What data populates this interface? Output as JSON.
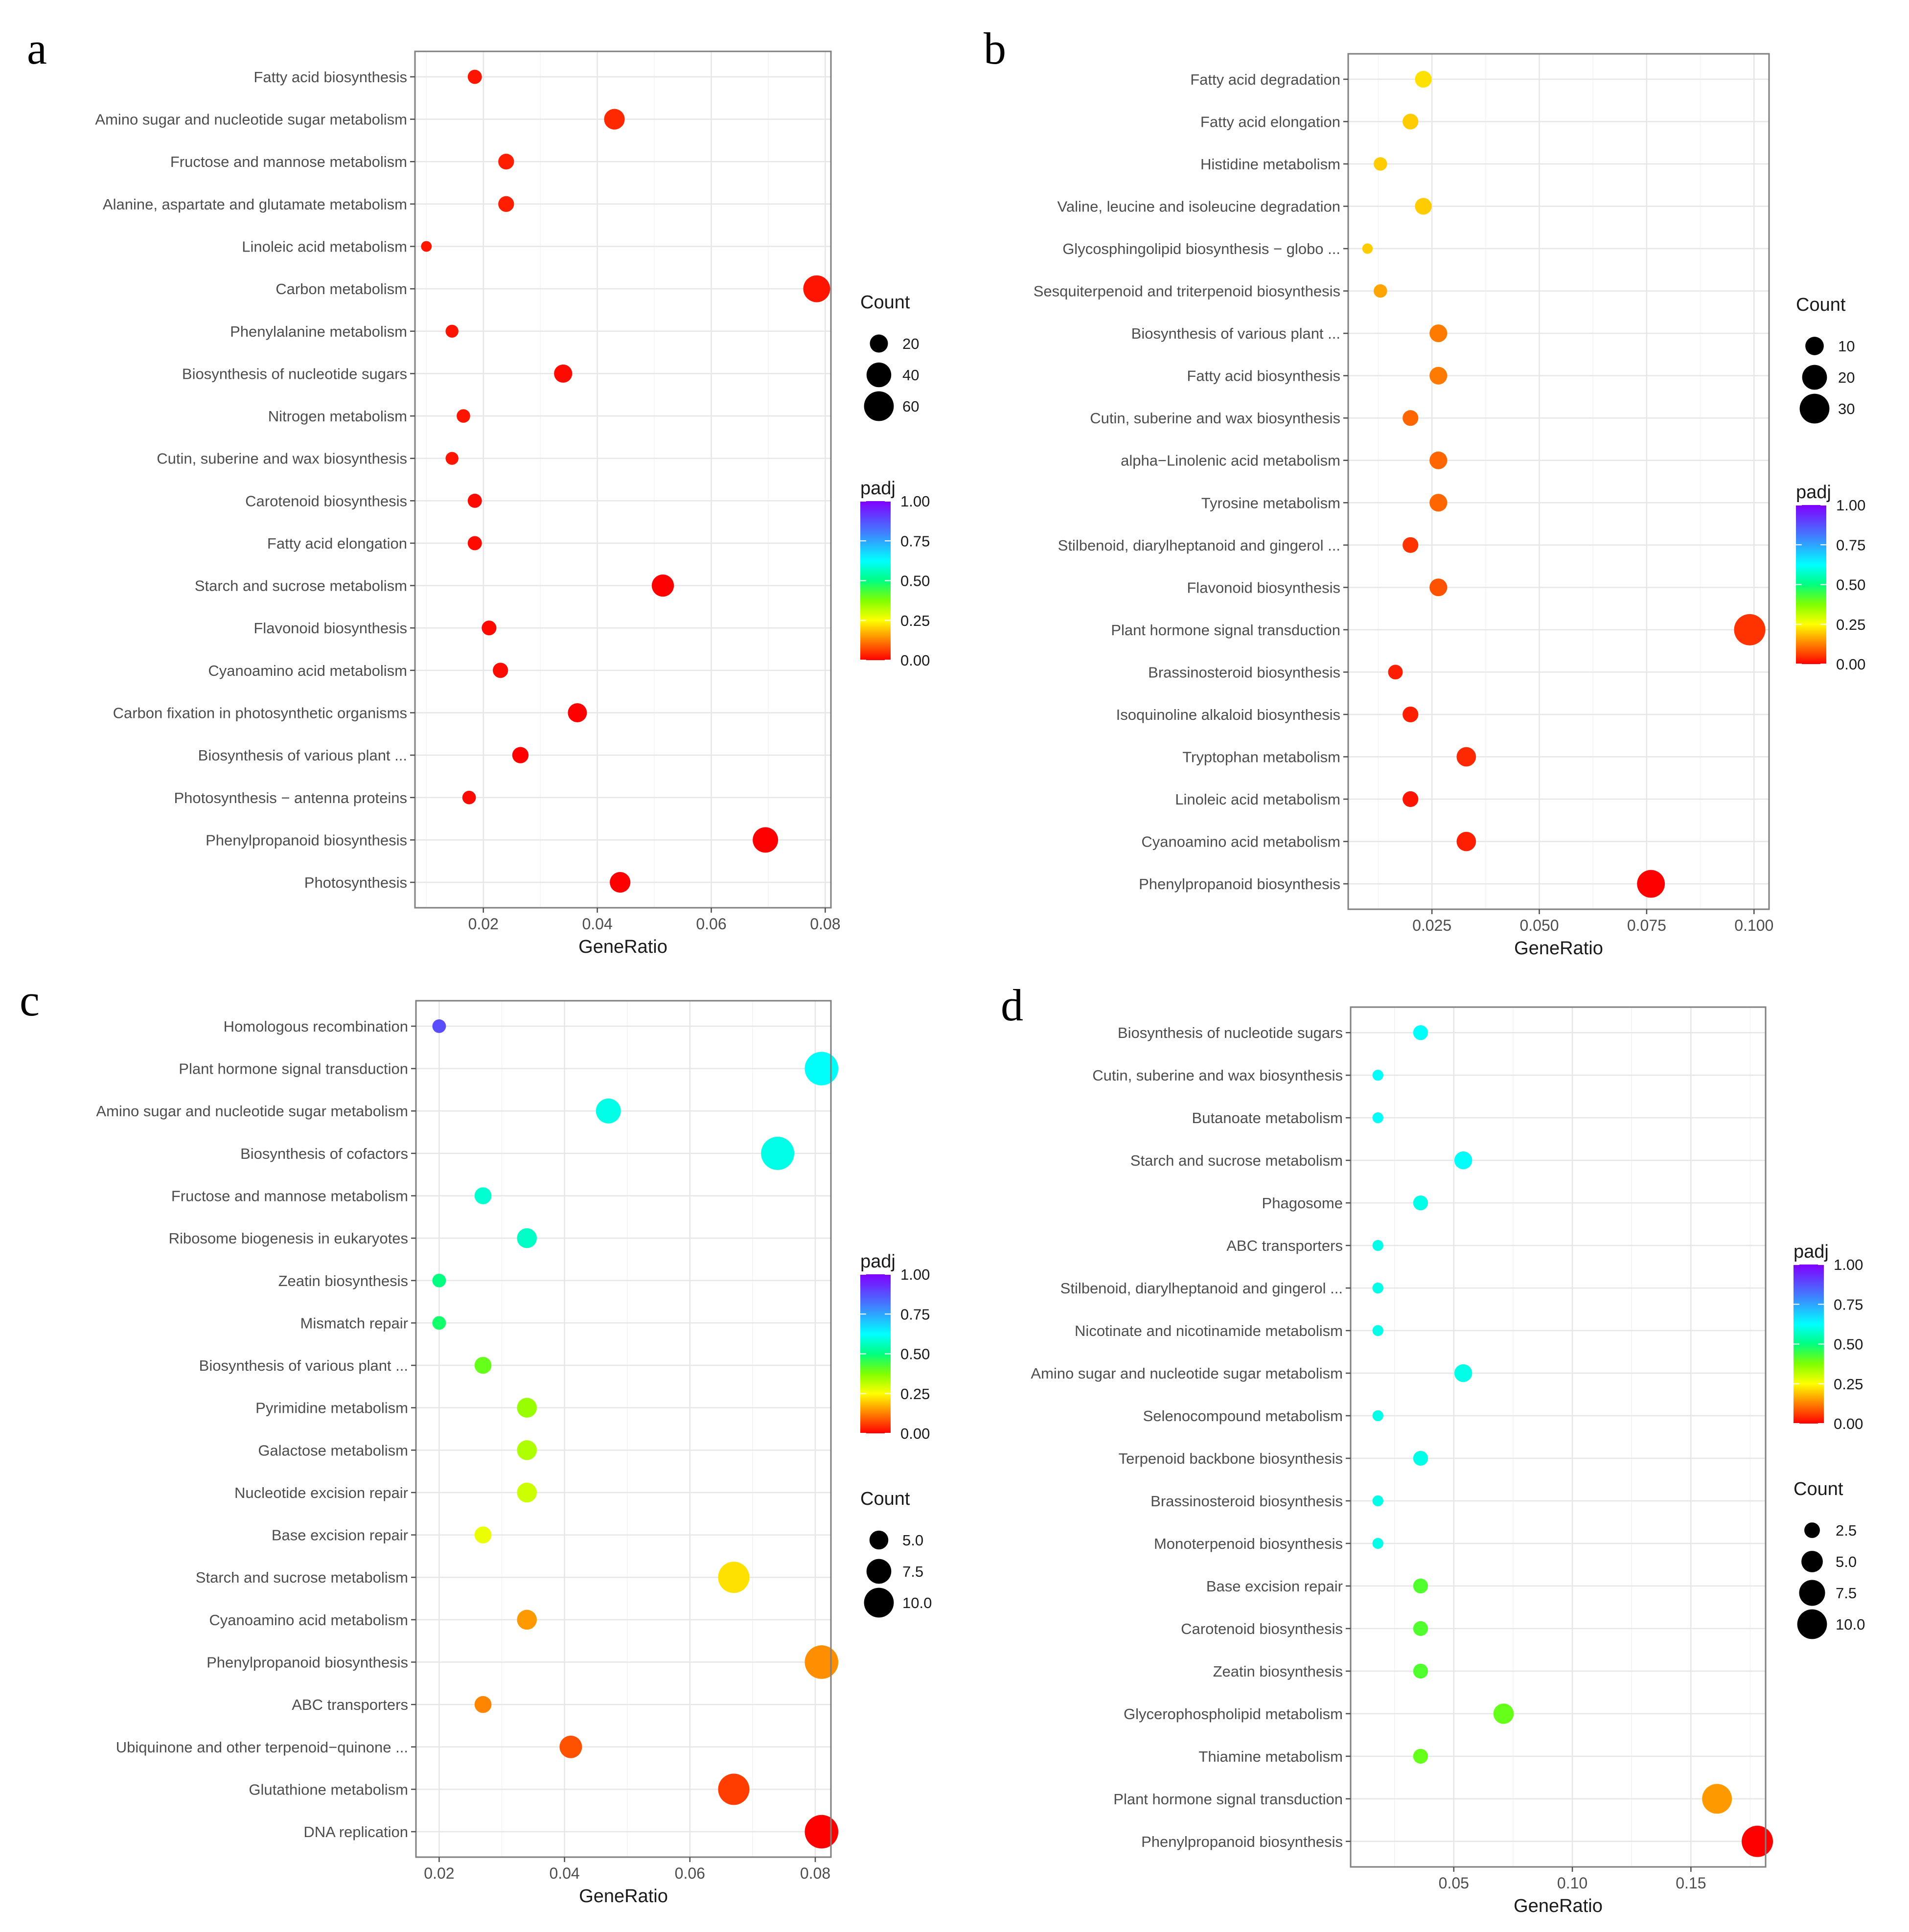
{
  "figure": "GeneRatio dot plots of enriched pathways",
  "chart_data": [
    {
      "panel": "a",
      "type": "scatter",
      "xlabel": "GeneRatio",
      "xlim": [
        0.008,
        0.081
      ],
      "xticks": [
        0.02,
        0.04,
        0.06,
        0.08
      ],
      "xtick_labels": [
        "0.02",
        "0.04",
        "0.06",
        "0.08"
      ],
      "categories": [
        "Fatty acid biosynthesis",
        "Amino sugar and nucleotide sugar metabolism",
        "Fructose and mannose metabolism",
        "Alanine, aspartate and glutamate metabolism",
        "Linoleic acid metabolism",
        "Carbon metabolism",
        "Phenylalanine metabolism",
        "Biosynthesis of nucleotide sugars",
        "Nitrogen metabolism",
        "Cutin, suberine and wax biosynthesis",
        "Carotenoid biosynthesis",
        "Fatty acid elongation",
        "Starch and sucrose metabolism",
        "Flavonoid biosynthesis",
        "Cyanoamino acid metabolism",
        "Carbon fixation in photosynthetic organisms",
        "Biosynthesis of various plant ...",
        "Photosynthesis − antenna proteins",
        "Phenylpropanoid biosynthesis",
        "Photosynthesis"
      ],
      "gene_ratio": [
        0.0185,
        0.043,
        0.024,
        0.024,
        0.01,
        0.0785,
        0.0145,
        0.034,
        0.0165,
        0.0145,
        0.0185,
        0.0185,
        0.0515,
        0.021,
        0.023,
        0.0365,
        0.0265,
        0.0175,
        0.0695,
        0.044
      ],
      "count": [
        10,
        24,
        13,
        13,
        5,
        43,
        8,
        18,
        9,
        8,
        10,
        10,
        28,
        11,
        12,
        20,
        14,
        9,
        38,
        24
      ],
      "padj": [
        0.02,
        0.04,
        0.03,
        0.03,
        0.02,
        0.02,
        0.02,
        0.01,
        0.02,
        0.02,
        0.01,
        0.01,
        0.0,
        0.01,
        0.01,
        0.0,
        0.0,
        0.01,
        0.0,
        0.0
      ],
      "size_legend": {
        "title": "Count",
        "values": [
          20,
          40,
          60
        ],
        "labels": [
          "20",
          "40",
          "60"
        ]
      },
      "color_legend": {
        "title": "padj",
        "ticks": [
          "1.00",
          "0.75",
          "0.50",
          "0.25",
          "0.00"
        ]
      },
      "legend_order": [
        "size",
        "color"
      ]
    },
    {
      "panel": "b",
      "type": "scatter",
      "xlabel": "GeneRatio",
      "xlim": [
        0.0055,
        0.1035
      ],
      "xticks": [
        0.025,
        0.05,
        0.075,
        0.1
      ],
      "xtick_labels": [
        "0.025",
        "0.050",
        "0.075",
        "0.100"
      ],
      "categories": [
        "Fatty acid degradation",
        "Fatty acid elongation",
        "Histidine metabolism",
        "Valine, leucine and isoleucine degradation",
        "Glycosphingolipid biosynthesis − globo ...",
        "Sesquiterpenoid and triterpenoid biosynthesis",
        "Biosynthesis of various plant ...",
        "Fatty acid biosynthesis",
        "Cutin, suberine and wax biosynthesis",
        "alpha−Linolenic acid metabolism",
        "Tyrosine metabolism",
        "Stilbenoid, diarylheptanoid and gingerol ...",
        "Flavonoid biosynthesis",
        "Plant hormone signal transduction",
        "Brassinosteroid biosynthesis",
        "Isoquinoline alkaloid biosynthesis",
        "Tryptophan metabolism",
        "Linoleic acid metabolism",
        "Cyanoamino acid metabolism",
        "Phenylpropanoid biosynthesis"
      ],
      "gene_ratio": [
        0.023,
        0.02,
        0.013,
        0.023,
        0.01,
        0.013,
        0.0265,
        0.0265,
        0.02,
        0.0265,
        0.0265,
        0.02,
        0.0265,
        0.099,
        0.0165,
        0.02,
        0.033,
        0.02,
        0.033,
        0.076
      ],
      "count": [
        7,
        6,
        4,
        7,
        2,
        4,
        8,
        8,
        6,
        8,
        8,
        6,
        8,
        30,
        5,
        6,
        10,
        6,
        10,
        23
      ],
      "padj": [
        0.22,
        0.2,
        0.2,
        0.2,
        0.2,
        0.16,
        0.12,
        0.12,
        0.1,
        0.1,
        0.1,
        0.05,
        0.08,
        0.05,
        0.03,
        0.03,
        0.04,
        0.02,
        0.03,
        0.0
      ],
      "size_legend": {
        "title": "Count",
        "values": [
          10,
          20,
          30
        ],
        "labels": [
          "10",
          "20",
          "30"
        ]
      },
      "color_legend": {
        "title": "padj",
        "ticks": [
          "1.00",
          "0.75",
          "0.50",
          "0.25",
          "0.00"
        ]
      },
      "legend_order": [
        "size",
        "color"
      ]
    },
    {
      "panel": "c",
      "type": "scatter",
      "xlabel": "GeneRatio",
      "xlim": [
        0.0163,
        0.0825
      ],
      "xticks": [
        0.02,
        0.04,
        0.06,
        0.08
      ],
      "xtick_labels": [
        "0.02",
        "0.04",
        "0.06",
        "0.08"
      ],
      "categories": [
        "Homologous recombination",
        "Plant hormone signal transduction",
        "Amino sugar and nucleotide sugar metabolism",
        "Biosynthesis of cofactors",
        "Fructose and mannose metabolism",
        "Ribosome biogenesis in eukaryotes",
        "Zeatin biosynthesis",
        "Mismatch repair",
        "Biosynthesis of various plant ...",
        "Pyrimidine metabolism",
        "Galactose metabolism",
        "Nucleotide excision repair",
        "Base excision repair",
        "Starch and sucrose metabolism",
        "Cyanoamino acid metabolism",
        "Phenylpropanoid biosynthesis",
        "ABC transporters",
        "Ubiquinone and other terpenoid−quinone ...",
        "Glutathione metabolism",
        "DNA replication"
      ],
      "gene_ratio": [
        0.02,
        0.081,
        0.047,
        0.074,
        0.027,
        0.034,
        0.02,
        0.02,
        0.027,
        0.034,
        0.034,
        0.034,
        0.027,
        0.067,
        0.034,
        0.081,
        0.027,
        0.041,
        0.067,
        0.081
      ],
      "count": [
        3,
        12,
        7,
        11,
        4,
        5,
        3,
        3,
        4,
        5,
        5,
        5,
        4,
        10,
        5,
        12,
        4,
        6,
        10,
        12
      ],
      "padj": [
        0.88,
        0.62,
        0.6,
        0.6,
        0.58,
        0.57,
        0.5,
        0.48,
        0.4,
        0.35,
        0.33,
        0.3,
        0.27,
        0.22,
        0.15,
        0.14,
        0.13,
        0.08,
        0.06,
        0.0
      ],
      "size_legend": {
        "title": "Count",
        "values": [
          5.0,
          7.5,
          10.0
        ],
        "labels": [
          "5.0",
          "7.5",
          "10.0"
        ]
      },
      "color_legend": {
        "title": "padj",
        "ticks": [
          "1.00",
          "0.75",
          "0.50",
          "0.25",
          "0.00"
        ]
      },
      "legend_order": [
        "color",
        "size"
      ]
    },
    {
      "panel": "d",
      "type": "scatter",
      "xlabel": "GeneRatio",
      "xlim": [
        0.0065,
        0.1815
      ],
      "xticks": [
        0.05,
        0.1,
        0.15
      ],
      "xtick_labels": [
        "0.05",
        "0.10",
        "0.15"
      ],
      "categories": [
        "Biosynthesis of nucleotide sugars",
        "Cutin, suberine and wax biosynthesis",
        "Butanoate metabolism",
        "Starch and sucrose metabolism",
        "Phagosome",
        "ABC transporters",
        "Stilbenoid, diarylheptanoid and gingerol ...",
        "Nicotinate and nicotinamide metabolism",
        "Amino sugar and nucleotide sugar metabolism",
        "Selenocompound metabolism",
        "Terpenoid backbone biosynthesis",
        "Brassinosteroid biosynthesis",
        "Monoterpenoid biosynthesis",
        "Base excision repair",
        "Carotenoid biosynthesis",
        "Zeatin biosynthesis",
        "Glycerophospholipid metabolism",
        "Thiamine metabolism",
        "Plant hormone signal transduction",
        "Phenylpropanoid biosynthesis"
      ],
      "gene_ratio": [
        0.036,
        0.018,
        0.018,
        0.054,
        0.036,
        0.018,
        0.018,
        0.018,
        0.054,
        0.018,
        0.036,
        0.018,
        0.018,
        0.036,
        0.036,
        0.036,
        0.071,
        0.036,
        0.161,
        0.178
      ],
      "count": [
        2,
        1,
        1,
        3,
        2,
        1,
        1,
        1,
        3,
        1,
        2,
        1,
        1,
        2,
        2,
        2,
        4,
        2,
        9,
        10
      ],
      "padj": [
        0.62,
        0.62,
        0.62,
        0.62,
        0.6,
        0.6,
        0.6,
        0.6,
        0.6,
        0.6,
        0.6,
        0.6,
        0.6,
        0.42,
        0.42,
        0.42,
        0.4,
        0.4,
        0.15,
        0.0
      ],
      "size_legend": {
        "title": "Count",
        "values": [
          2.5,
          5.0,
          7.5,
          10.0
        ],
        "labels": [
          "2.5",
          "5.0",
          "7.5",
          "10.0"
        ]
      },
      "color_legend": {
        "title": "padj",
        "ticks": [
          "1.00",
          "0.75",
          "0.50",
          "0.25",
          "0.00"
        ]
      },
      "legend_order": [
        "color",
        "size"
      ]
    }
  ]
}
